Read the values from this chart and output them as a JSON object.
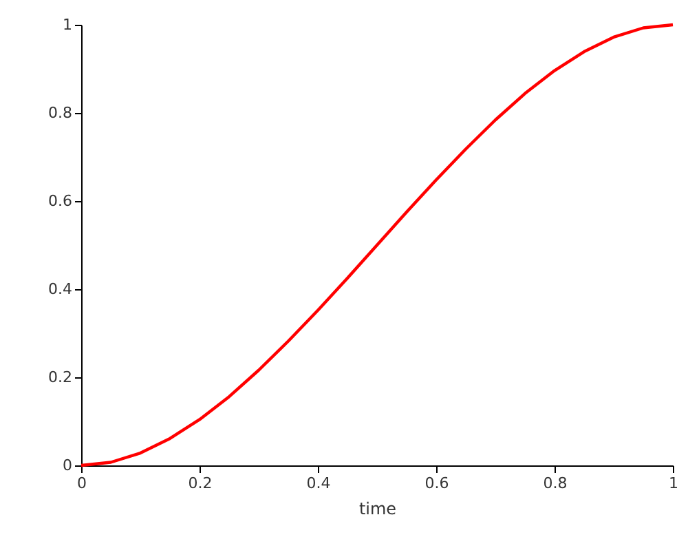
{
  "chart_data": {
    "type": "line",
    "xlabel": "time",
    "x": [
      0,
      0.05,
      0.1,
      0.15,
      0.2,
      0.25,
      0.3,
      0.35,
      0.4,
      0.45,
      0.5,
      0.55,
      0.6,
      0.65,
      0.7,
      0.75,
      0.8,
      0.85,
      0.9,
      0.95,
      1
    ],
    "series": [
      {
        "color": "#ff0000",
        "values": [
          0,
          0.007,
          0.028,
          0.061,
          0.104,
          0.156,
          0.216,
          0.282,
          0.352,
          0.425,
          0.5,
          0.575,
          0.648,
          0.718,
          0.784,
          0.844,
          0.896,
          0.939,
          0.972,
          0.993,
          1
        ]
      }
    ],
    "xlim": [
      0,
      1
    ],
    "xticks": [
      0,
      0.2,
      0.4,
      0.6,
      0.8,
      1
    ],
    "ylim": [
      0,
      1
    ],
    "yticks": [
      0,
      0.2,
      0.4,
      0.6,
      0.8,
      1
    ],
    "grid": false,
    "marker": "none",
    "line_style": "solid"
  }
}
